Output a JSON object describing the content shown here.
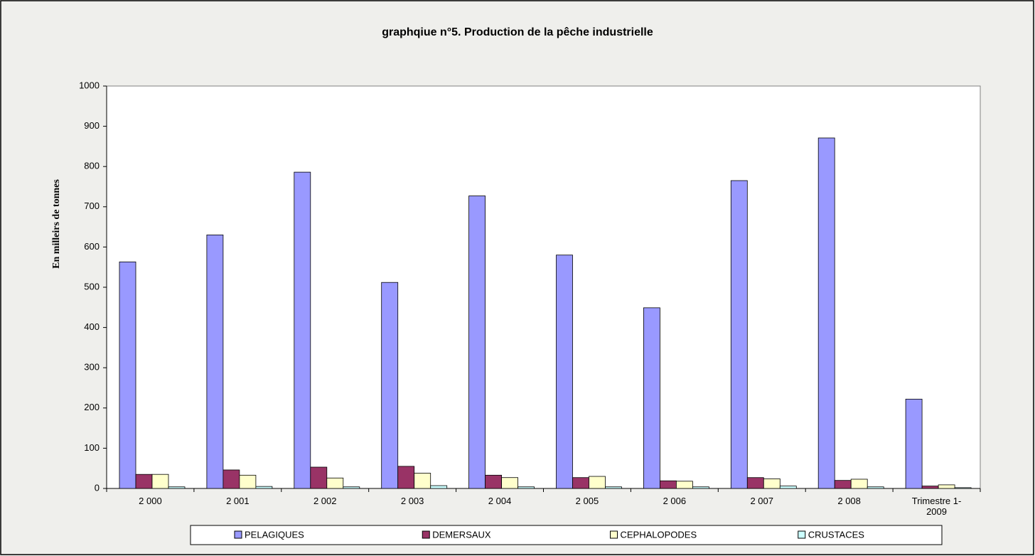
{
  "chart_data": {
    "type": "bar",
    "title": "graphqiue n°5. Production de la pêche industrielle",
    "y_label": "En milleirs de tonnes",
    "categories": [
      "2 000",
      "2 001",
      "2 002",
      "2 003",
      "2 004",
      "2 005",
      "2 006",
      "2 007",
      "2 008",
      "Trimestre 1- 2009"
    ],
    "series": [
      {
        "name": "PELAGIQUES",
        "color": "#9999ff",
        "values": [
          563,
          630,
          786,
          512,
          727,
          580,
          449,
          765,
          871,
          222
        ]
      },
      {
        "name": "DEMERSAUX",
        "color": "#993366",
        "values": [
          35,
          46,
          53,
          55,
          33,
          27,
          19,
          27,
          20,
          6
        ]
      },
      {
        "name": "CEPHALOPODES",
        "color": "#ffffcc",
        "values": [
          35,
          33,
          26,
          38,
          27,
          30,
          18,
          24,
          23,
          9
        ]
      },
      {
        "name": "CRUSTACES",
        "color": "#ccffff",
        "values": [
          4,
          5,
          4,
          7,
          4,
          4,
          4,
          6,
          4,
          2
        ]
      }
    ],
    "ylim": [
      0,
      1000
    ],
    "yticks": [
      0,
      100,
      200,
      300,
      400,
      500,
      600,
      700,
      800,
      900,
      1000
    ],
    "grid": false,
    "legend": "bottom"
  }
}
